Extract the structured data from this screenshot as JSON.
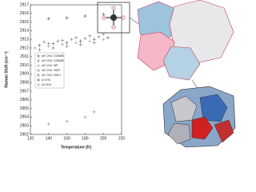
{
  "chart_data": {
    "type": "scatter",
    "x_label": "Temperature (K)",
    "y_label": "Raman Shift (cm⁻¹)",
    "xlim": [
      120,
      220
    ],
    "xticks": [
      120,
      140,
      160,
      180,
      200,
      220
    ],
    "ylim": [
      2902,
      2917
    ],
    "yticks": [
      2902,
      2903,
      2904,
      2905,
      2906,
      2907,
      2908,
      2909,
      2910,
      2911,
      2912,
      2913,
      2914,
      2915,
      2916,
      2917
    ],
    "series": [
      {
        "name": "sH CH4 / 22DMB",
        "color": "#555555",
        "x": [
          130,
          145,
          160,
          175,
          190,
          205
        ],
        "values": [
          2912.3,
          2912.5,
          2912.6,
          2912.8,
          2913.0,
          2913.2
        ]
      },
      {
        "name": "sH CH4 / 23DMB",
        "color": "#777777",
        "x": [
          135,
          150,
          165,
          180,
          195
        ],
        "values": [
          2912.7,
          2912.8,
          2913.0,
          2913.1,
          2913.3
        ]
      },
      {
        "name": "sH CH4 / NP",
        "color": "#999999",
        "x": [
          125,
          140,
          155,
          170,
          185,
          200
        ],
        "values": [
          2912.0,
          2912.2,
          2912.4,
          2912.6,
          2912.8,
          2913.0
        ]
      },
      {
        "name": "sH CH4 / MCP",
        "color": "#666699",
        "x": [
          130,
          145,
          160,
          175,
          190
        ],
        "values": [
          2911.8,
          2912.0,
          2912.2,
          2912.4,
          2912.6
        ]
      },
      {
        "name": "sH CH4 / MCH",
        "color": "#886666",
        "x": [
          140,
          155,
          170,
          185,
          200
        ],
        "values": [
          2912.5,
          2912.9,
          2913.2,
          2913.4,
          2913.6
        ]
      },
      {
        "name": "sI CH4",
        "color": "#444444",
        "x": [
          140,
          160,
          180,
          200
        ],
        "values": [
          2915.4,
          2915.5,
          2915.7,
          2915.9
        ]
      },
      {
        "name": "sII CH4",
        "color": "#888888",
        "x": [
          140,
          160,
          180,
          190
        ],
        "values": [
          2903.2,
          2903.5,
          2904.0,
          2904.6
        ]
      }
    ]
  }
}
